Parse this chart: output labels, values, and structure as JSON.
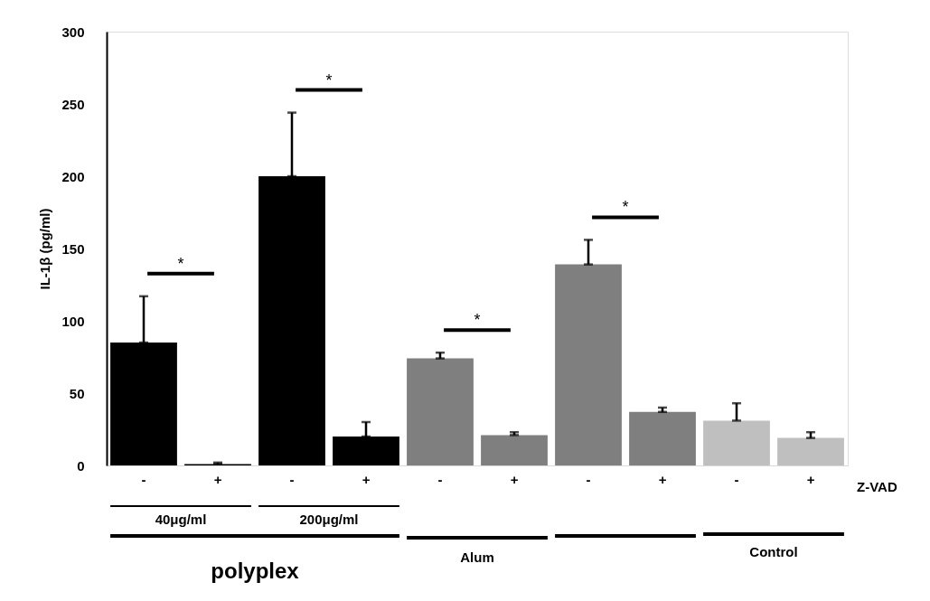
{
  "chart_data": {
    "type": "bar",
    "ylabel": "IL-1β (pg/ml)",
    "categories": [
      "-",
      "+",
      "-",
      "+",
      "-",
      "+",
      "-",
      "+",
      "-",
      "+"
    ],
    "values": [
      85,
      1,
      200,
      20,
      74,
      21,
      139,
      37,
      31,
      19
    ],
    "errors": [
      [
        85,
        117
      ],
      [
        1,
        2
      ],
      [
        200,
        244
      ],
      [
        20,
        30
      ],
      [
        74,
        78
      ],
      [
        21,
        23
      ],
      [
        139,
        156
      ],
      [
        37,
        40
      ],
      [
        31,
        43
      ],
      [
        19,
        23
      ]
    ],
    "colors": [
      "#000000",
      "#000000",
      "#000000",
      "#000000",
      "#7f7f7f",
      "#7f7f7f",
      "#7f7f7f",
      "#7f7f7f",
      "#bfbfbf",
      "#bfbfbf"
    ],
    "ylim": [
      0,
      300
    ],
    "yticks": [
      0,
      50,
      100,
      150,
      200,
      250,
      300
    ],
    "grid": false,
    "annotations": [
      "*",
      "*",
      "*",
      "*",
      "40μg/ml",
      "200μg/ml",
      "polyplex",
      "Alum",
      "Control",
      "Z-VAD"
    ]
  }
}
